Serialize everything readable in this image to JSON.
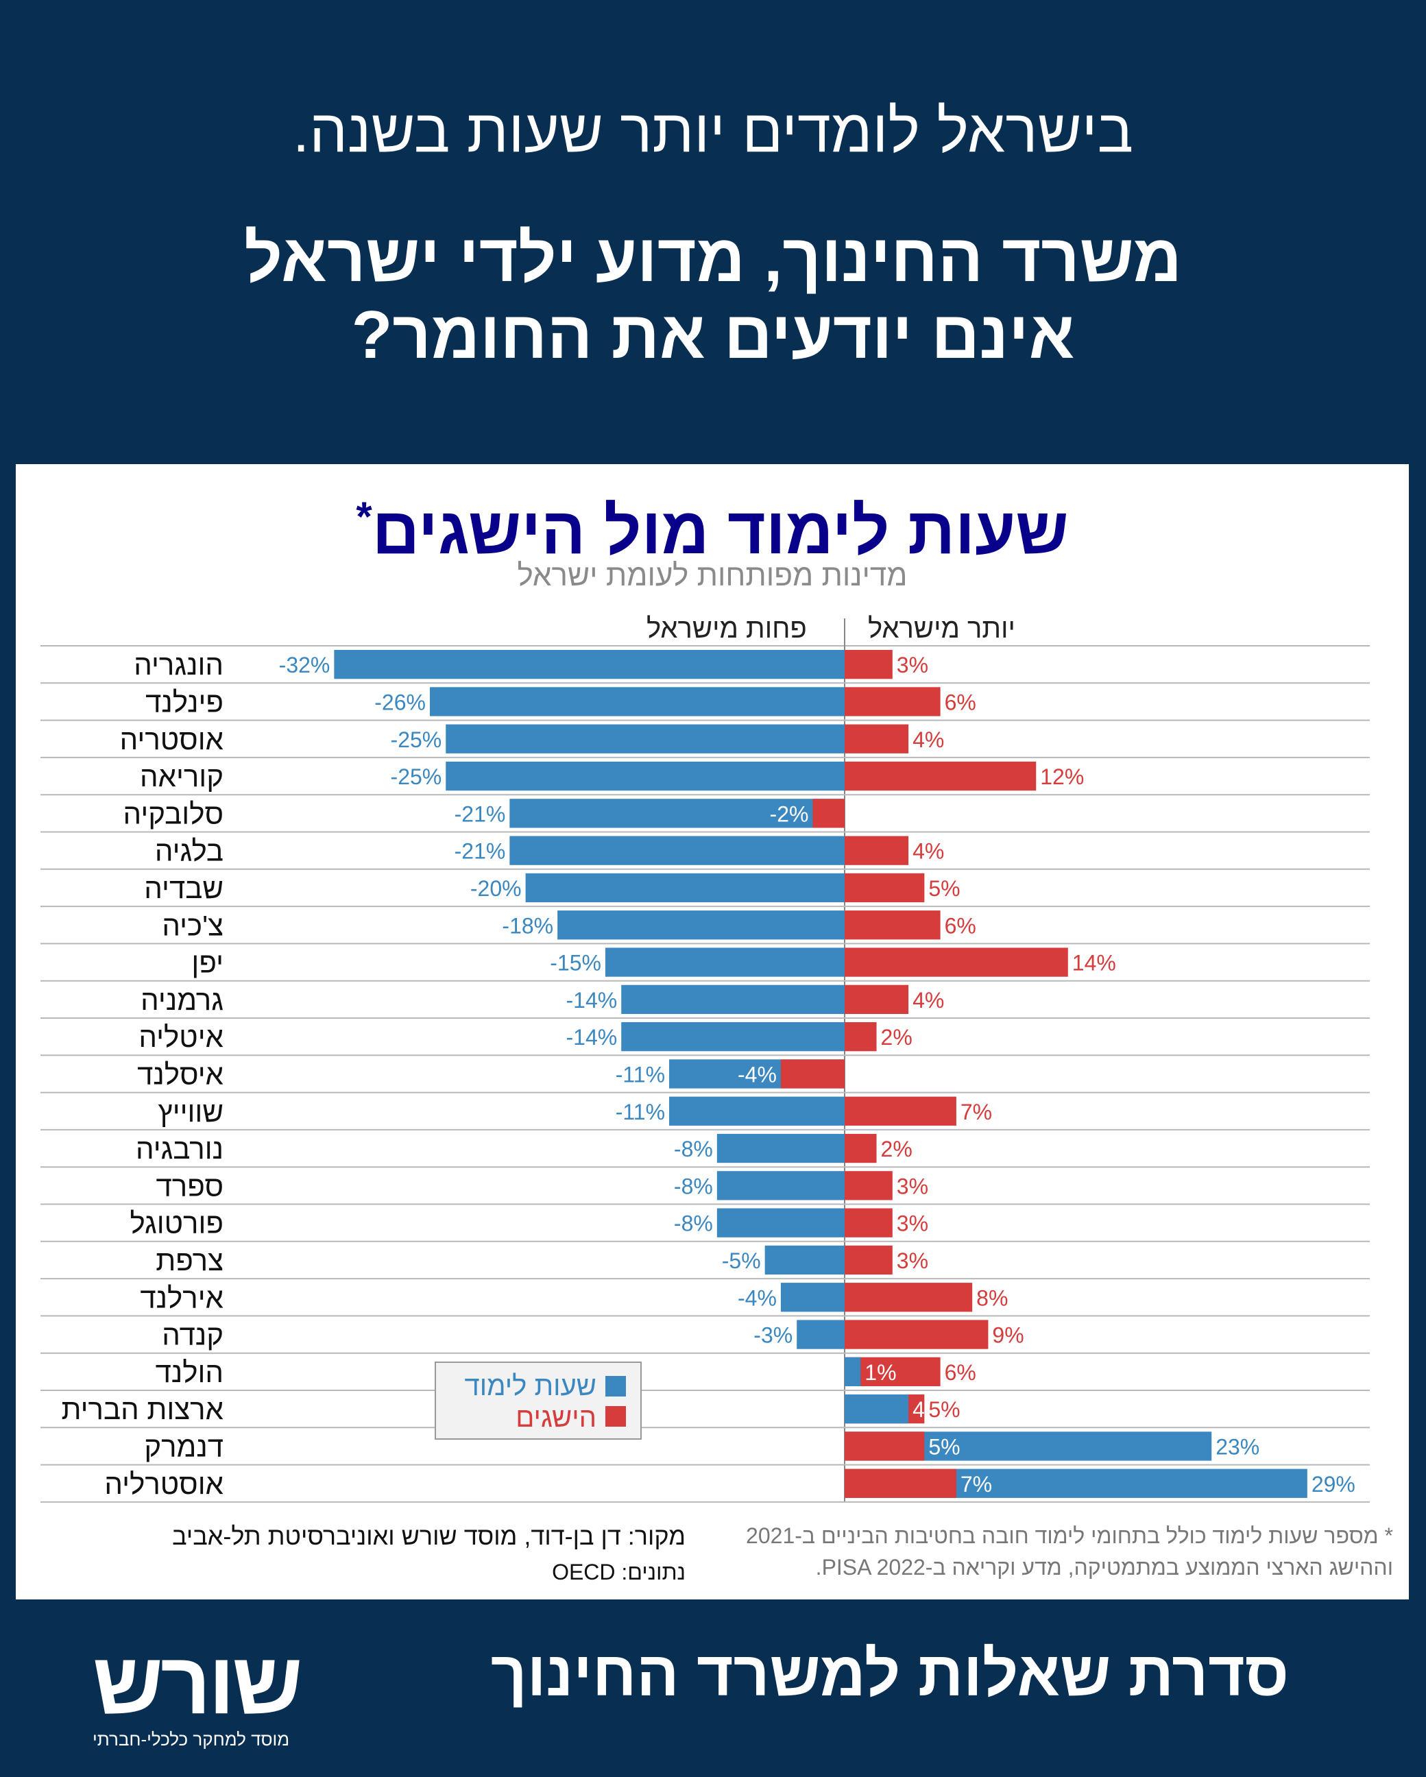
{
  "header": {
    "line1": "בישראל לומדים יותר שעות בשנה.",
    "line2a": "משרד החינוך, מדוע ילדי ישראל",
    "line2b": "אינם יודעים את החומר?"
  },
  "colors": {
    "background": "#082e52",
    "study": "#3b87c0",
    "achieve": "#d63c3c",
    "title": "#08008a"
  },
  "chart_data": {
    "type": "bar",
    "title": "שעות לימוד מול הישגים",
    "title_mark": "*",
    "subtitle": "מדינות מפותחות לעומת ישראל",
    "side_more": "יותר מישראל",
    "side_less": "פחות מישראל",
    "categories": [
      "הונגריה",
      "פינלנד",
      "אוסטריה",
      "קוריאה",
      "סלובקיה",
      "בלגיה",
      "שבדיה",
      "צ'כיה",
      "יפן",
      "גרמניה",
      "איטליה",
      "איסלנד",
      "שווייץ",
      "נורבגיה",
      "ספרד",
      "פורטוגל",
      "צרפת",
      "אירלנד",
      "קנדה",
      "הולנד",
      "ארצות הברית",
      "דנמרק",
      "אוסטרליה"
    ],
    "series": [
      {
        "name": "שעות לימוד",
        "values": [
          -32,
          -26,
          -25,
          -25,
          -21,
          -21,
          -20,
          -18,
          -15,
          -14,
          -14,
          -11,
          -11,
          -8,
          -8,
          -8,
          -5,
          -4,
          -3,
          1,
          4,
          23,
          29
        ]
      },
      {
        "name": "הישגים",
        "values": [
          3,
          6,
          4,
          12,
          -2,
          4,
          5,
          6,
          14,
          4,
          2,
          -4,
          7,
          2,
          3,
          3,
          3,
          8,
          9,
          6,
          5,
          5,
          7
        ]
      }
    ],
    "unit": "%"
  },
  "footnote": {
    "line1": "*  מספר שעות לימוד כולל בתחומי לימוד חובה בחטיבות הביניים ב-2021",
    "line2": "וההישג הארצי הממוצע במתמטיקה, מדע וקריאה ב-PISA 2022."
  },
  "source": {
    "line1": "מקור: דן בן-דוד, מוסד שורש ואוניברסיטת תל-אביב",
    "line2": "נתונים: OECD"
  },
  "footer": {
    "series_title": "סדרת שאלות למשרד החינוך",
    "logo": "שורש",
    "logo_sub": "מוסד למחקר כלכלי-חברתי"
  }
}
